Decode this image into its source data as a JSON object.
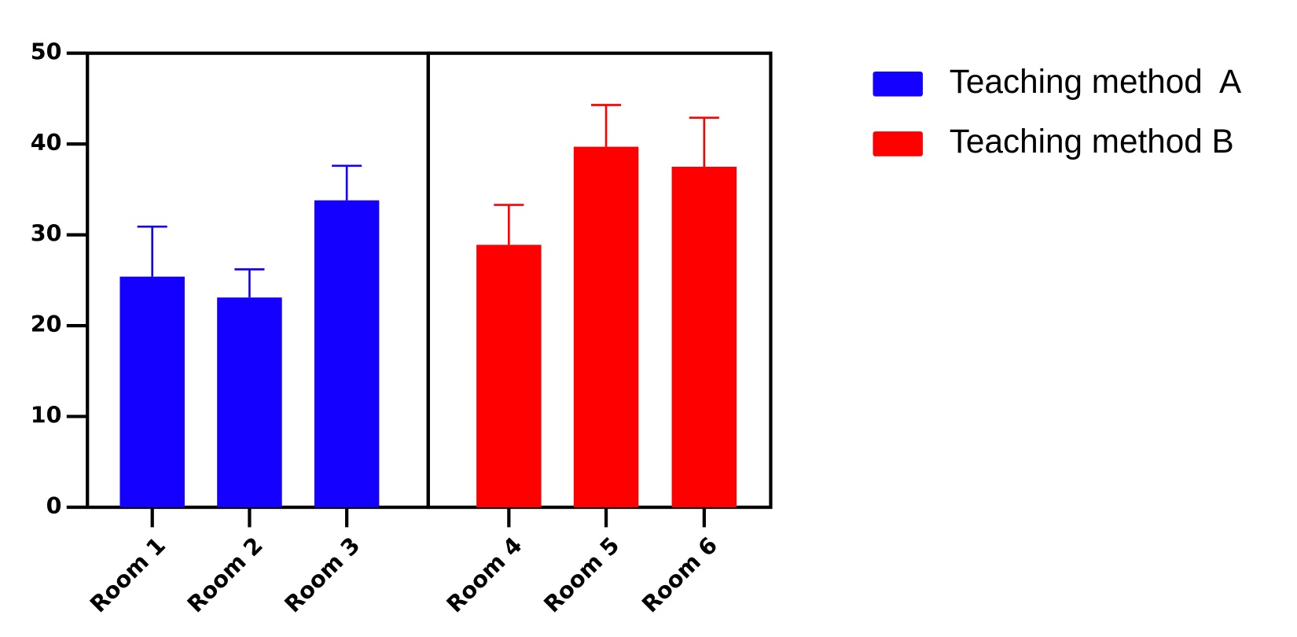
{
  "chart_data": {
    "type": "bar",
    "categories": [
      "Room 1",
      "Room 2",
      "Room 3",
      "Room 4",
      "Room 5",
      "Room 6"
    ],
    "series": [
      {
        "name": "Teaching method  A",
        "color": "#1400ff",
        "values": [
          25.4,
          23.1,
          33.8,
          null,
          null,
          null
        ],
        "errors": [
          5.5,
          3.1,
          3.8,
          null,
          null,
          null
        ]
      },
      {
        "name": "Teaching method B",
        "color": "#ff0000",
        "values": [
          null,
          null,
          null,
          28.9,
          39.7,
          37.5
        ],
        "errors": [
          null,
          null,
          null,
          4.4,
          4.6,
          5.4
        ]
      }
    ],
    "ylim": [
      0,
      50
    ],
    "yticks": [
      0,
      10,
      20,
      30,
      40,
      50
    ],
    "grid": false,
    "legend": "right"
  }
}
